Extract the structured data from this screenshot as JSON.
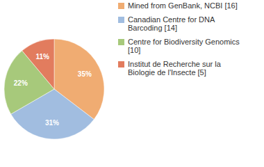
{
  "chart_data": {
    "type": "pie",
    "categories": [
      "Mined from GenBank, NCBI [16]",
      "Canadian Centre for DNA Barcoding [14]",
      "Centre for Biodiversity Genomics [10]",
      "Institut de Recherche sur la Biologie de l'Insecte [5]"
    ],
    "values": [
      35,
      31,
      22,
      11
    ],
    "value_labels": [
      "35%",
      "31%",
      "22%",
      "11%"
    ],
    "colors": [
      "#f0ac72",
      "#a1bde0",
      "#a7c97b",
      "#e27c5e"
    ],
    "data_labels": true,
    "legend": "upper right"
  }
}
